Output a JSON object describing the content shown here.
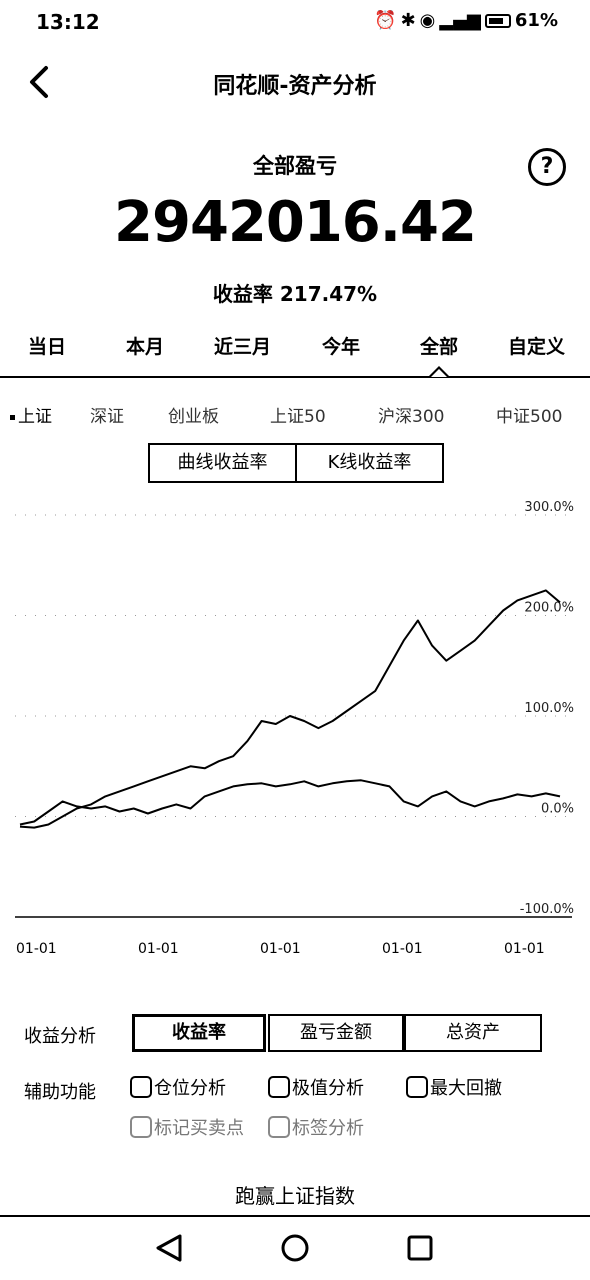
{
  "status": {
    "time": "13:12",
    "battery": "61%"
  },
  "header": {
    "title": "同花顺-资产分析"
  },
  "summary": {
    "label": "全部盈亏",
    "amount": "2942016.42",
    "rate": "收益率 217.47%"
  },
  "period_tabs": [
    "当日",
    "本月",
    "近三月",
    "今年",
    "全部",
    "自定义"
  ],
  "period_selected": "全部",
  "indices": [
    "上证",
    "深证",
    "创业板",
    "上证50",
    "沪深300",
    "中证500"
  ],
  "index_selected": "上证",
  "chart_mode": {
    "options": [
      "曲线收益率",
      "K线收益率"
    ],
    "selected": "曲线收益率"
  },
  "chart_data": {
    "type": "line",
    "y_tick_labels": [
      "300.0%",
      "200.0%",
      "100.0%",
      "0.0%",
      "-100.0%"
    ],
    "ylim": [
      -100,
      300
    ],
    "x_tick_labels": [
      "01-01",
      "01-01",
      "01-01",
      "01-01",
      "01-01"
    ],
    "series": [
      {
        "values": [
          -10,
          -11,
          -8,
          0,
          8,
          12,
          20,
          25,
          30,
          35,
          40,
          45,
          50,
          48,
          55,
          60,
          75,
          95,
          92,
          100,
          95,
          88,
          95,
          105,
          115,
          125,
          150,
          175,
          195,
          170,
          155,
          165,
          175,
          190,
          205,
          215,
          220,
          225,
          213
        ]
      },
      {
        "values": [
          -8,
          -5,
          5,
          15,
          10,
          8,
          10,
          5,
          8,
          3,
          8,
          12,
          8,
          20,
          25,
          30,
          32,
          33,
          30,
          32,
          35,
          30,
          33,
          35,
          36,
          33,
          30,
          15,
          10,
          20,
          25,
          15,
          10,
          15,
          18,
          22,
          20,
          23,
          20
        ]
      }
    ]
  },
  "analysis": {
    "label": "收益分析",
    "options": [
      "收益率",
      "盈亏金额",
      "总资产"
    ],
    "selected": "收益率"
  },
  "aux": {
    "label": "辅助功能",
    "options": [
      "仓位分析",
      "极值分析",
      "最大回撤"
    ],
    "options_disabled": [
      "标记买卖点",
      "标签分析"
    ]
  },
  "footer_link": "跑赢上证指数"
}
